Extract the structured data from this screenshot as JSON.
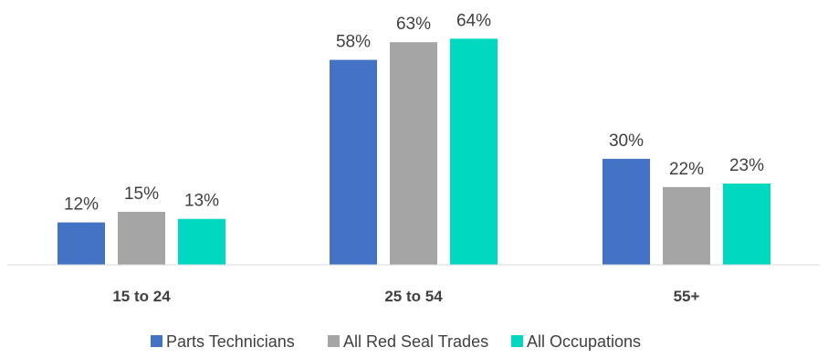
{
  "chart_data": {
    "type": "bar",
    "categories": [
      "15 to 24",
      "25 to 54",
      "55+"
    ],
    "series": [
      {
        "name": "Parts Technicians",
        "values": [
          12,
          58,
          30
        ],
        "color": "#4472C4"
      },
      {
        "name": "All Red Seal Trades",
        "values": [
          15,
          63,
          22
        ],
        "color": "#A5A5A5"
      },
      {
        "name": "All Occupations",
        "values": [
          13,
          64,
          23
        ],
        "color": "#00D9C0"
      }
    ],
    "value_suffix": "%",
    "title": "",
    "xlabel": "",
    "ylabel": "",
    "ylim": [
      0,
      64
    ],
    "grid": false,
    "legend": "bottom"
  }
}
